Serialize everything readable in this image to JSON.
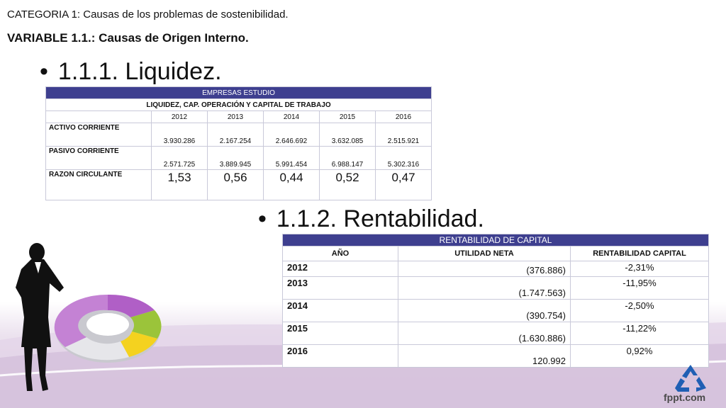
{
  "header": {
    "category": "CATEGORIA 1: Causas de los problemas de sostenibilidad.",
    "variable": "VARIABLE 1.1.: Causas de Origen Interno."
  },
  "section1": {
    "bullet": "•",
    "title": "1.1.1. Liquidez."
  },
  "section2": {
    "bullet": "•",
    "title": "1.1.2. Rentabilidad."
  },
  "liquidity_table": {
    "header": "EMPRESAS ESTUDIO",
    "subheader": "LIQUIDEZ, CAP. OPERACIÓN Y CAPITAL DE TRABAJO",
    "years": [
      "2012",
      "2013",
      "2014",
      "2015",
      "2016"
    ],
    "rows": [
      {
        "label": "ACTIVO CORRIENTE",
        "values": [
          "3.930.286",
          "2.167.254",
          "2.646.692",
          "3.632.085",
          "2.515.921"
        ]
      },
      {
        "label": "PASIVO CORRIENTE",
        "values": [
          "2.571.725",
          "3.889.945",
          "5.991.454",
          "6.988.147",
          "5.302.316"
        ]
      },
      {
        "label": "RAZON CIRCULANTE",
        "values": [
          "1,53",
          "0,56",
          "0,44",
          "0,52",
          "0,47"
        ]
      }
    ]
  },
  "profitability_table": {
    "header": "RENTABILIDAD DE CAPITAL",
    "columns": [
      "AÑO",
      "UTILIDAD NETA",
      "RENTABILIDAD CAPITAL"
    ],
    "rows": [
      {
        "year": "2012",
        "utilidad": "(376.886)",
        "rentabilidad": "-2,31%"
      },
      {
        "year": "2013",
        "utilidad": "(1.747.563)",
        "rentabilidad": "-11,95%"
      },
      {
        "year": "2014",
        "utilidad": "(390.754)",
        "rentabilidad": "-2,50%"
      },
      {
        "year": "2015",
        "utilidad": "(1.630.886)",
        "rentabilidad": "-11,22%"
      },
      {
        "year": "2016",
        "utilidad": "120.992",
        "rentabilidad": "0,92%"
      }
    ]
  },
  "footer": {
    "brand": "fppt.com"
  },
  "colors": {
    "table_header": "#3e3f8f",
    "recycle": "#1f5fb4",
    "donut_purple": "#b05fc6",
    "donut_green": "#9bc43a",
    "donut_yellow": "#f4d21f"
  },
  "icons": [
    "recycle-icon",
    "businesswoman-silhouette",
    "donut-chart-graphic",
    "decorative-swoosh"
  ]
}
